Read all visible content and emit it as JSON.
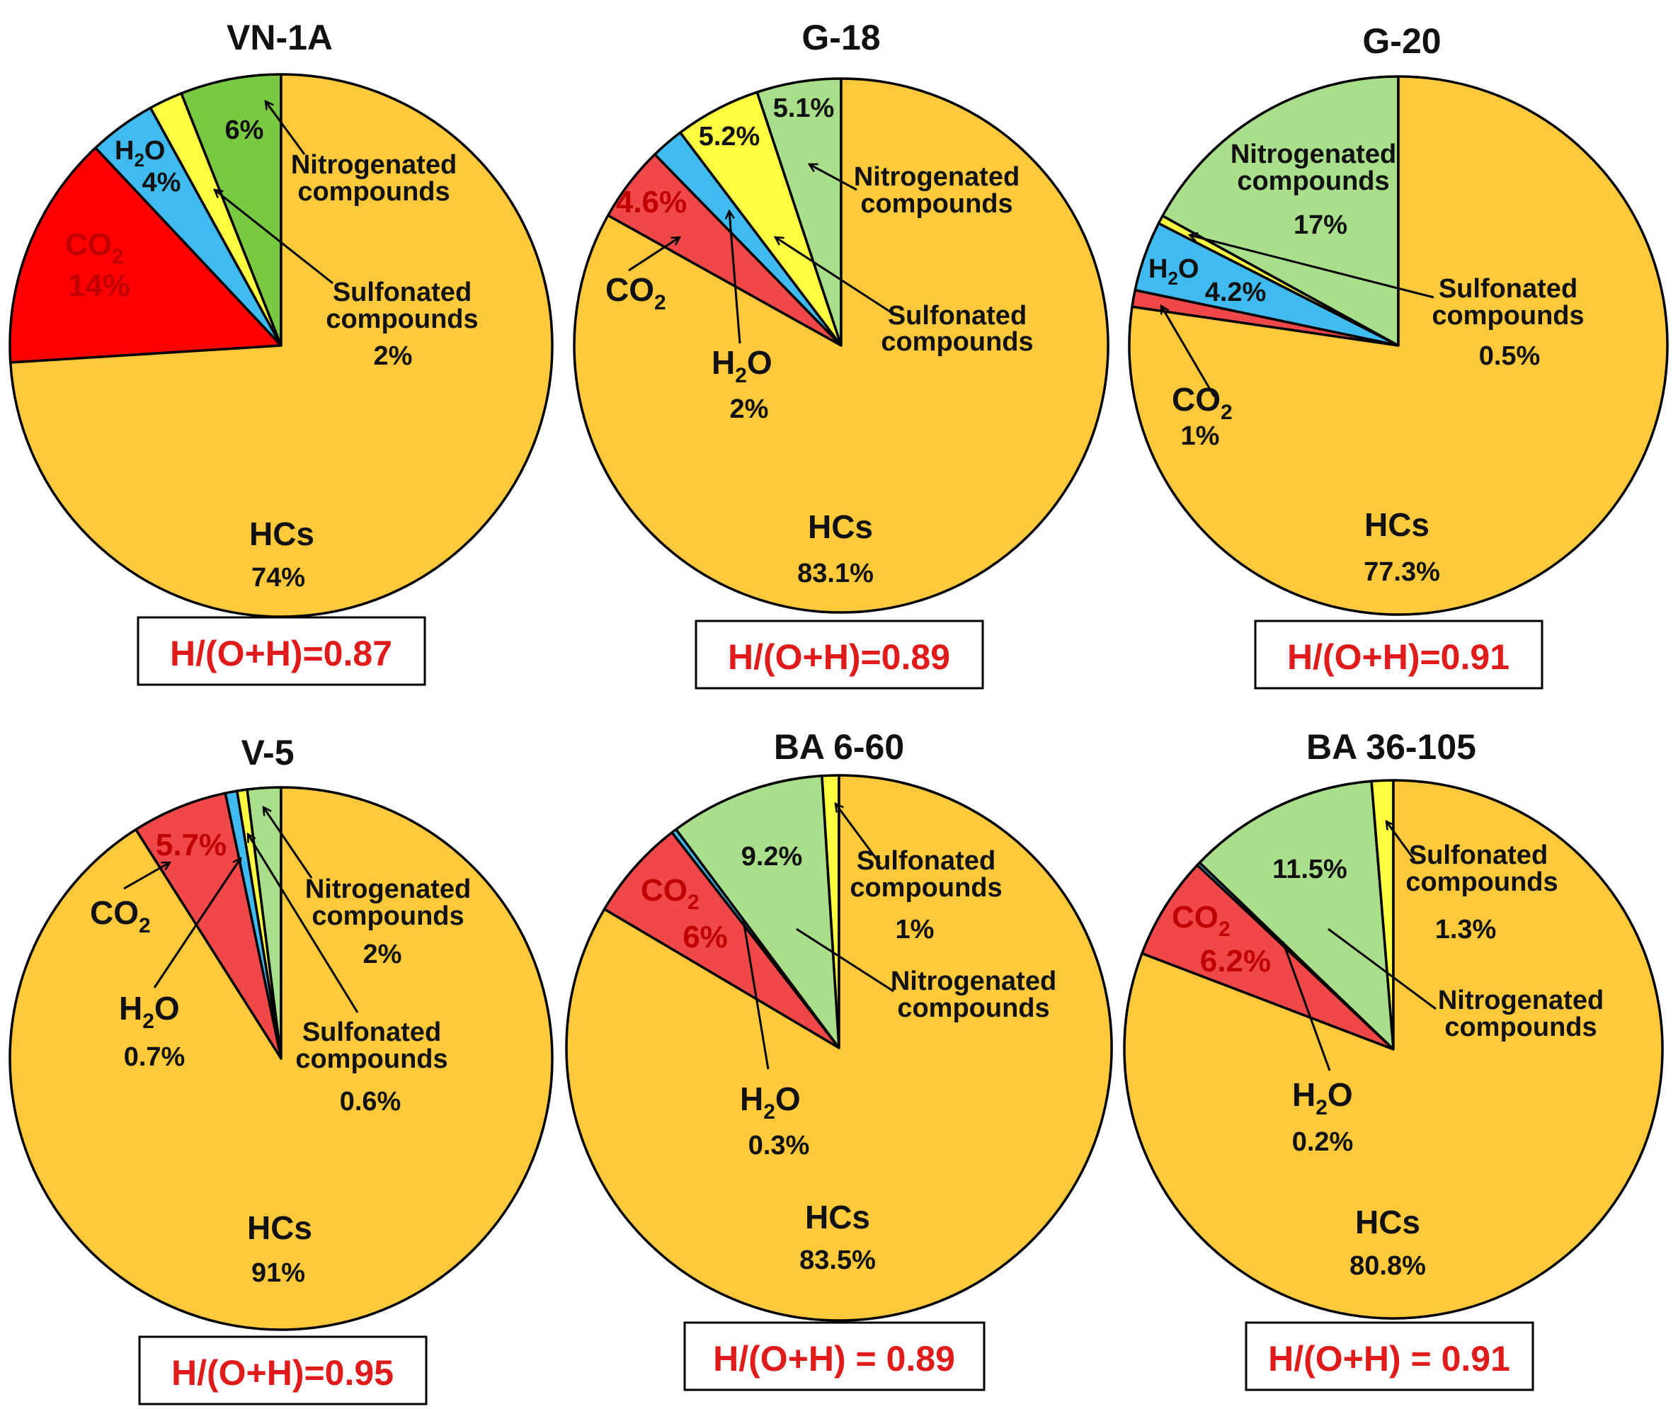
{
  "colors": {
    "HCs": "#ffc93c",
    "CO2_vn1a": "#ff0000",
    "CO2": "#f04848",
    "H2O": "#3fbbef",
    "Sulfonated": "#fdfd42",
    "Nitrogenated_vn1a": "#7ac943",
    "Nitrogenated": "#a9de8a",
    "ratio_text": "#e01b1b"
  },
  "chart_data": [
    {
      "type": "pie",
      "title": "VN-1A",
      "ratio_label": "H/(O+H)=0.87",
      "slices": [
        {
          "name": "Nitrogenated compounds",
          "value": 6,
          "color_key": "Nitrogenated_vn1a"
        },
        {
          "name": "Sulfonated compounds",
          "value": 2,
          "color_key": "Sulfonated"
        },
        {
          "name": "H2O",
          "value": 4,
          "color_key": "H2O"
        },
        {
          "name": "CO2",
          "value": 14,
          "color_key": "CO2_vn1a"
        },
        {
          "name": "HCs",
          "value": 74,
          "color_key": "HCs"
        }
      ],
      "labels": {
        "nitro_value": "6%",
        "nitro_line1": "Nitrogenated",
        "nitro_line2": "compounds",
        "sulfo_line1": "Sulfonated",
        "sulfo_line2": "compounds",
        "sulfo_value": "2%",
        "h2o_name": "H",
        "h2o_value": "4%",
        "co2_name": "CO",
        "co2_value": "14%",
        "hcs_name": "HCs",
        "hcs_value": "74%"
      }
    },
    {
      "type": "pie",
      "title": "G-18",
      "ratio_label": "H/(O+H)=0.89",
      "slices": [
        {
          "name": "Nitrogenated compounds",
          "value": 5.1,
          "color_key": "Nitrogenated"
        },
        {
          "name": "Sulfonated compounds",
          "value": 5.2,
          "color_key": "Sulfonated"
        },
        {
          "name": "H2O",
          "value": 2,
          "color_key": "H2O"
        },
        {
          "name": "CO2",
          "value": 4.6,
          "color_key": "CO2"
        },
        {
          "name": "HCs",
          "value": 83.1,
          "color_key": "HCs"
        }
      ],
      "labels": {
        "nitro_value": "5.1%",
        "nitro_line1": "Nitrogenated",
        "nitro_line2": "compounds",
        "sulfo_value": "5.2%",
        "sulfo_line1": "Sulfonated",
        "sulfo_line2": "compounds",
        "co2_value": "4.6%",
        "co2_name": "CO",
        "h2o_name": "H",
        "h2o_value": "2%",
        "hcs_name": "HCs",
        "hcs_value": "83.1%"
      }
    },
    {
      "type": "pie",
      "title": "G-20",
      "ratio_label": "H/(O+H)=0.91",
      "slices": [
        {
          "name": "Nitrogenated compounds",
          "value": 17,
          "color_key": "Nitrogenated"
        },
        {
          "name": "Sulfonated compounds",
          "value": 0.5,
          "color_key": "Sulfonated"
        },
        {
          "name": "H2O",
          "value": 4.2,
          "color_key": "H2O"
        },
        {
          "name": "CO2",
          "value": 1,
          "color_key": "CO2"
        },
        {
          "name": "HCs",
          "value": 77.3,
          "color_key": "HCs"
        }
      ],
      "labels": {
        "nitro_line1": "Nitrogenated",
        "nitro_line2": "compounds",
        "nitro_value": "17%",
        "h2o_name": "H",
        "h2o_value": "4.2%",
        "sulfo_line1": "Sulfonated",
        "sulfo_line2": "compounds",
        "sulfo_value": "0.5%",
        "co2_name": "CO",
        "co2_value": "1%",
        "hcs_name": "HCs",
        "hcs_value": "77.3%"
      }
    },
    {
      "type": "pie",
      "title": "V-5",
      "ratio_label": "H/(O+H)=0.95",
      "slices": [
        {
          "name": "Nitrogenated compounds",
          "value": 2,
          "color_key": "Nitrogenated"
        },
        {
          "name": "Sulfonated compounds",
          "value": 0.6,
          "color_key": "Sulfonated"
        },
        {
          "name": "H2O",
          "value": 0.7,
          "color_key": "H2O"
        },
        {
          "name": "CO2",
          "value": 5.7,
          "color_key": "CO2"
        },
        {
          "name": "HCs",
          "value": 91,
          "color_key": "HCs"
        }
      ],
      "labels": {
        "co2_value": "5.7%",
        "co2_name": "CO",
        "nitro_line1": "Nitrogenated",
        "nitro_line2": "compounds",
        "nitro_value": "2%",
        "h2o_name": "H",
        "h2o_value": "0.7%",
        "sulfo_line1": "Sulfonated",
        "sulfo_line2": "compounds",
        "sulfo_value": "0.6%",
        "hcs_name": "HCs",
        "hcs_value": "91%"
      }
    },
    {
      "type": "pie",
      "title": "BA 6-60",
      "ratio_label": "H/(O+H) = 0.89",
      "slices": [
        {
          "name": "Sulfonated compounds",
          "value": 1,
          "color_key": "Sulfonated"
        },
        {
          "name": "Nitrogenated compounds",
          "value": 9.2,
          "color_key": "Nitrogenated"
        },
        {
          "name": "H2O",
          "value": 0.3,
          "color_key": "H2O"
        },
        {
          "name": "CO2",
          "value": 6,
          "color_key": "CO2"
        },
        {
          "name": "HCs",
          "value": 83.5,
          "color_key": "HCs"
        }
      ],
      "labels": {
        "nitro_value": "9.2%",
        "sulfo_line1": "Sulfonated",
        "sulfo_line2": "compounds",
        "sulfo_value": "1%",
        "co2_name": "CO",
        "co2_value": "6%",
        "nitro_line1": "Nitrogenated",
        "nitro_line2": "compounds",
        "h2o_name": "H",
        "h2o_value": "0.3%",
        "hcs_name": "HCs",
        "hcs_value": "83.5%"
      }
    },
    {
      "type": "pie",
      "title": "BA 36-105",
      "ratio_label": "H/(O+H) = 0.91",
      "slices": [
        {
          "name": "Sulfonated compounds",
          "value": 1.3,
          "color_key": "Sulfonated"
        },
        {
          "name": "Nitrogenated compounds",
          "value": 11.5,
          "color_key": "Nitrogenated"
        },
        {
          "name": "H2O",
          "value": 0.2,
          "color_key": "H2O"
        },
        {
          "name": "CO2",
          "value": 6.2,
          "color_key": "CO2"
        },
        {
          "name": "HCs",
          "value": 80.8,
          "color_key": "HCs"
        }
      ],
      "labels": {
        "nitro_value": "11.5%",
        "sulfo_line1": "Sulfonated",
        "sulfo_line2": "compounds",
        "sulfo_value": "1.3%",
        "co2_name": "CO",
        "co2_value": "6.2%",
        "nitro_line1": "Nitrogenated",
        "nitro_line2": "compounds",
        "h2o_name": "H",
        "h2o_value": "0.2%",
        "hcs_name": "HCs",
        "hcs_value": "80.8%"
      }
    }
  ]
}
